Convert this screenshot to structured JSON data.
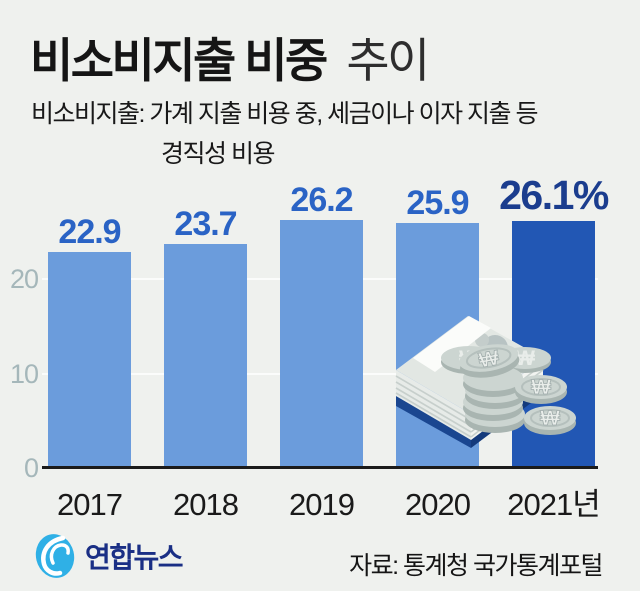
{
  "header": {
    "title_bold": "비소비지출 비중",
    "title_light": "추이",
    "subtitle_line1": "비소비지출: 가계 지출 비용 중, 세금이나 이자 지출 등",
    "subtitle_line2": "경직성 비용"
  },
  "chart_data": {
    "type": "bar",
    "title": "비소비지출 비중 추이",
    "categories": [
      "2017",
      "2018",
      "2019",
      "2020",
      "2021년"
    ],
    "values": [
      22.9,
      23.7,
      26.2,
      25.9,
      26.1
    ],
    "value_labels": [
      "22.9",
      "23.7",
      "26.2",
      "25.9",
      "26.1%"
    ],
    "unit": "%",
    "highlight_index": 4,
    "ylim": [
      0,
      28
    ],
    "yticks": [
      0,
      10,
      20
    ],
    "grid": "horizontal",
    "legend": "none",
    "bar_color": "#6b9cdc",
    "highlight_bar_color": "#2257b4",
    "value_label_color": "#2a63c5",
    "highlight_value_label_color": "#1b3d8e",
    "axis_tick_color": "#a5b7ba",
    "x_label_color": "#1a1a1a"
  },
  "illustration": {
    "name": "won-banknotes-and-coins",
    "currency_symbol": "₩"
  },
  "footer": {
    "logo_text": "연합뉴스",
    "source": "자료: 통계청 국가통계포털"
  },
  "colors": {
    "background": "#eff1ee",
    "baseline": "#1b1b1b",
    "gridline": "rgba(255,255,255,0.75)",
    "logo_blue": "#2fb0e6",
    "logo_navy": "#1a2f85"
  }
}
